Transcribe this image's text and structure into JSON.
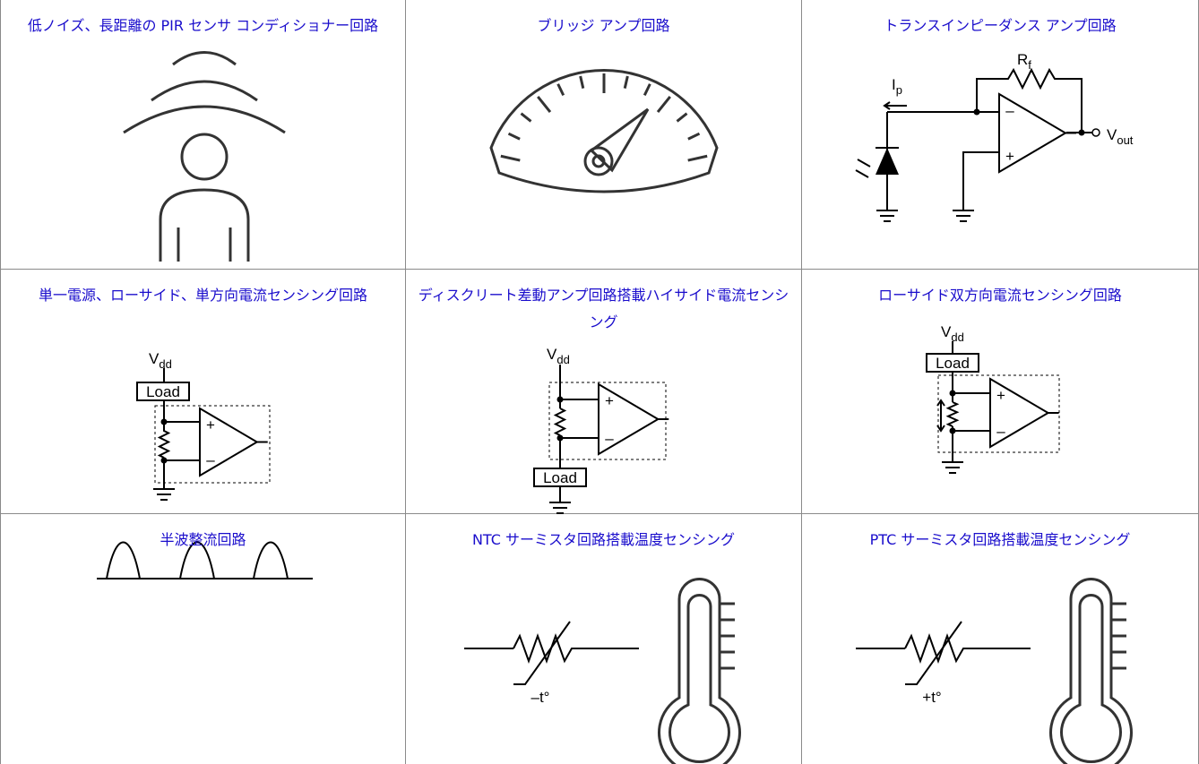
{
  "cells": [
    {
      "title": "低ノイズ、長距離の PIR センサ コンディショナー回路"
    },
    {
      "title": "ブリッジ アンプ回路"
    },
    {
      "title": "トランスインピーダンス アンプ回路",
      "rf": [
        "R",
        "f"
      ],
      "ip": [
        "I",
        "p"
      ],
      "vout": [
        "V",
        "out"
      ],
      "minus": "–",
      "plus": "+"
    },
    {
      "title": "単一電源、ローサイド、単方向電流センシング回路",
      "vdd": [
        "V",
        "dd"
      ],
      "load": "Load",
      "plus": "+",
      "minus": "–"
    },
    {
      "title": "ディスクリート差動アンプ回路搭載ハイサイド電流センシング",
      "vdd": [
        "V",
        "dd"
      ],
      "load": "Load",
      "plus": "+",
      "minus": "–"
    },
    {
      "title": "ローサイド双方向電流センシング回路",
      "vdd": [
        "V",
        "dd"
      ],
      "load": "Load",
      "plus": "+",
      "minus": "–"
    },
    {
      "title": "半波整流回路"
    },
    {
      "title": "NTC サーミスタ回路搭載温度センシング",
      "temp": "–t°"
    },
    {
      "title": "PTC サーミスタ回路搭載温度センシング",
      "temp": "+t°"
    }
  ]
}
